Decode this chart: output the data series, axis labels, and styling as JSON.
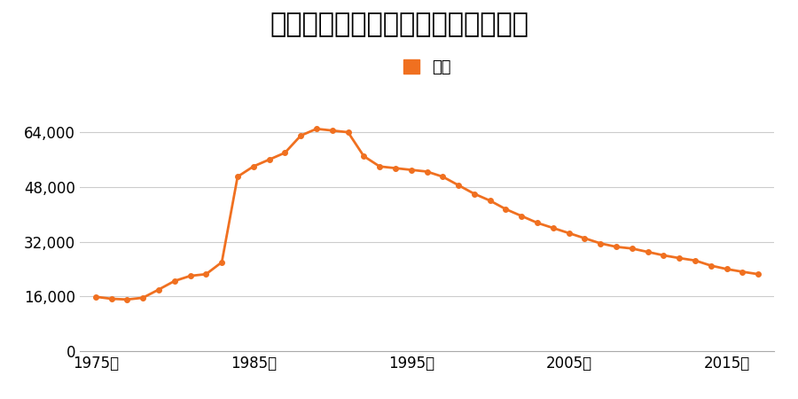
{
  "title": "北海道北見市番場町９番の地価推移",
  "legend_label": "価格",
  "line_color": "#f07020",
  "marker_color": "#f07020",
  "background_color": "#ffffff",
  "grid_color": "#cccccc",
  "years": [
    1975,
    1976,
    1977,
    1978,
    1979,
    1980,
    1981,
    1982,
    1983,
    1984,
    1985,
    1986,
    1987,
    1988,
    1989,
    1990,
    1991,
    1992,
    1993,
    1994,
    1995,
    1996,
    1997,
    1998,
    1999,
    2000,
    2001,
    2002,
    2003,
    2004,
    2005,
    2006,
    2007,
    2008,
    2009,
    2010,
    2011,
    2012,
    2013,
    2014,
    2015,
    2016,
    2017
  ],
  "values": [
    15900,
    15300,
    15100,
    15600,
    18000,
    20500,
    22000,
    22500,
    26000,
    51000,
    54000,
    56000,
    58000,
    63000,
    65000,
    64500,
    64000,
    57000,
    54000,
    53500,
    53000,
    52500,
    51000,
    48500,
    46000,
    44000,
    41500,
    39500,
    37500,
    36000,
    34500,
    33000,
    31500,
    30500,
    30000,
    29000,
    28000,
    27200,
    26500,
    25000,
    24000,
    23200,
    22500
  ],
  "yticks": [
    0,
    16000,
    32000,
    48000,
    64000
  ],
  "ytick_labels": [
    "0",
    "16,000",
    "32,000",
    "48,000",
    "64,000"
  ],
  "xticks": [
    1975,
    1985,
    1995,
    2005,
    2015
  ],
  "xtick_labels": [
    "1975年",
    "1985年",
    "1995年",
    "2005年",
    "2015年"
  ],
  "ylim": [
    0,
    70000
  ],
  "xlim": [
    1974,
    2018
  ],
  "title_fontsize": 22,
  "tick_fontsize": 12,
  "legend_fontsize": 13
}
